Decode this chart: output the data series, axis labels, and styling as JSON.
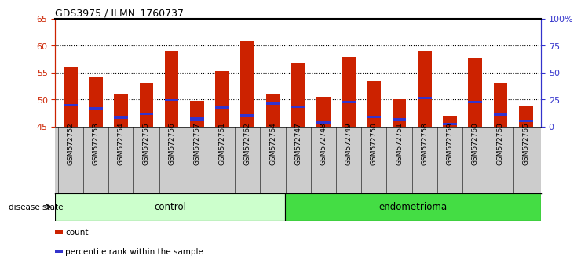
{
  "title": "GDS3975 / ILMN_1760737",
  "samples": [
    "GSM572752",
    "GSM572753",
    "GSM572754",
    "GSM572755",
    "GSM572756",
    "GSM572757",
    "GSM572761",
    "GSM572762",
    "GSM572764",
    "GSM572747",
    "GSM572748",
    "GSM572749",
    "GSM572750",
    "GSM572751",
    "GSM572758",
    "GSM572759",
    "GSM572760",
    "GSM572763",
    "GSM572765"
  ],
  "bar_values": [
    56.1,
    54.2,
    51.1,
    53.0,
    59.0,
    49.8,
    55.3,
    60.8,
    51.0,
    56.7,
    50.5,
    57.9,
    53.3,
    50.0,
    59.0,
    47.0,
    57.7,
    53.0,
    48.9
  ],
  "blue_markers": [
    49.0,
    48.3,
    46.7,
    47.3,
    50.0,
    46.4,
    48.5,
    47.0,
    49.3,
    48.7,
    45.7,
    49.5,
    46.8,
    46.3,
    50.2,
    45.5,
    49.5,
    47.2,
    46.0
  ],
  "bar_bottom": 45.0,
  "ylim_left": [
    45,
    65
  ],
  "ylim_right": [
    0,
    100
  ],
  "yticks_left": [
    45,
    50,
    55,
    60,
    65
  ],
  "yticks_right": [
    0,
    25,
    50,
    75,
    100
  ],
  "ytick_labels_right": [
    "0",
    "25",
    "50",
    "75",
    "100%"
  ],
  "dotted_lines": [
    50,
    55,
    60
  ],
  "bar_color": "#cc2200",
  "blue_color": "#3333cc",
  "groups": [
    {
      "label": "control",
      "start": 0,
      "end": 9,
      "color": "#ccffcc"
    },
    {
      "label": "endometrioma",
      "start": 9,
      "end": 19,
      "color": "#44dd44"
    }
  ],
  "disease_state_label": "disease state",
  "legend_items": [
    {
      "label": "count",
      "color": "#cc2200"
    },
    {
      "label": "percentile rank within the sample",
      "color": "#3333cc"
    }
  ],
  "tick_color_left": "#cc2200",
  "tick_color_right": "#3333cc",
  "bg_plot": "#ffffff",
  "bg_tick_area": "#cccccc",
  "top_line_color": "#000000"
}
